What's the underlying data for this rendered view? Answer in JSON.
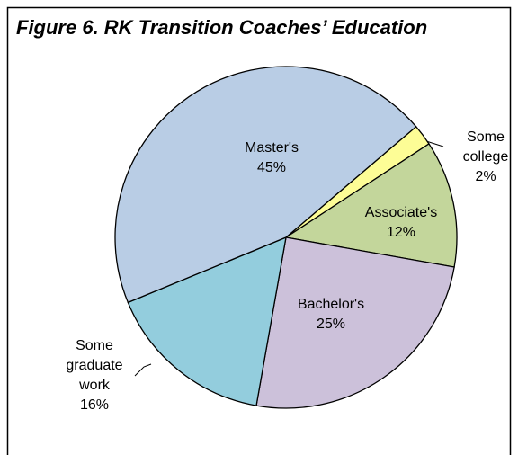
{
  "chart_data": {
    "type": "pie",
    "title": "Figure 6. RK Transition Coaches’ Education",
    "categories": [
      "Some college",
      "Associate's",
      "Bachelor's",
      "Some graduate work",
      "Master's"
    ],
    "values": [
      2,
      12,
      25,
      16,
      45
    ],
    "value_labels": [
      "2%",
      "12%",
      "25%",
      "16%",
      "45%"
    ],
    "colors": [
      "#fdfd96",
      "#c3d69b",
      "#ccc1da",
      "#93cddd",
      "#b9cde5"
    ]
  }
}
